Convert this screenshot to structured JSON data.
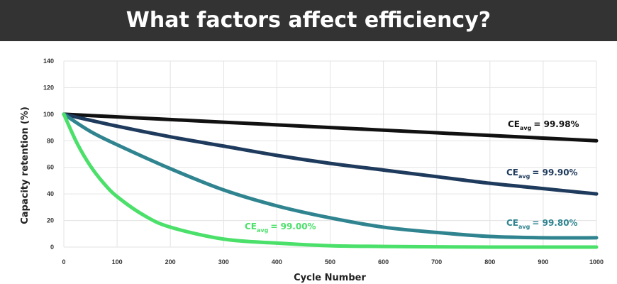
{
  "header": {
    "title": "What factors affect efficiency?"
  },
  "colors": {
    "banner": "#333333",
    "grid": "#e3e3e3"
  },
  "chart_data": {
    "type": "line",
    "title": "",
    "xlabel": "Cycle Number",
    "ylabel": "Capacity retention (%)",
    "xlim": [
      0,
      1000
    ],
    "ylim": [
      0,
      140
    ],
    "xticks": [
      0,
      100,
      200,
      300,
      400,
      500,
      600,
      700,
      800,
      900,
      1000
    ],
    "yticks": [
      0,
      20,
      40,
      60,
      80,
      100,
      120,
      140
    ],
    "grid": true,
    "series": [
      {
        "ce_main": "CE",
        "ce_sub": "avg",
        "ce_value": "= 99.98%",
        "color": "#111111",
        "x": [
          0,
          100,
          200,
          300,
          400,
          500,
          600,
          700,
          800,
          900,
          1000
        ],
        "values": [
          100,
          98,
          96,
          94,
          92,
          90,
          88,
          86,
          84,
          82,
          80
        ]
      },
      {
        "ce_main": "CE",
        "ce_sub": "avg",
        "ce_value": "= 99.90%",
        "color": "#1e3a5c",
        "x": [
          0,
          100,
          200,
          300,
          400,
          500,
          600,
          700,
          800,
          900,
          1000
        ],
        "values": [
          100,
          91,
          83,
          76,
          69,
          63,
          58,
          53,
          48,
          44,
          40
        ]
      },
      {
        "ce_main": "CE",
        "ce_sub": "avg",
        "ce_value": "= 99.80%",
        "color": "#2f8490",
        "x": [
          0,
          50,
          100,
          200,
          300,
          400,
          500,
          600,
          700,
          800,
          900,
          1000
        ],
        "values": [
          100,
          87,
          77,
          59,
          43,
          31,
          22,
          15,
          11,
          8,
          7,
          7
        ]
      },
      {
        "ce_main": "CE",
        "ce_sub": "avg",
        "ce_value": "= 99.00%",
        "color": "#4be06a",
        "x": [
          0,
          25,
          50,
          75,
          100,
          150,
          200,
          300,
          400,
          500,
          600,
          700,
          800,
          900,
          1000
        ],
        "values": [
          100,
          78,
          61,
          48,
          38,
          24,
          15,
          6,
          3,
          1,
          0.5,
          0.2,
          0,
          0,
          0
        ]
      }
    ]
  }
}
